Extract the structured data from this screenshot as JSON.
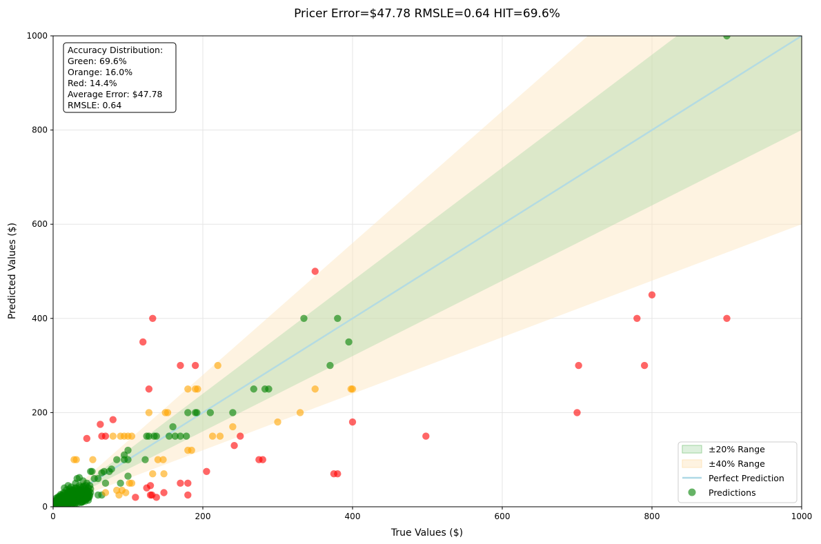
{
  "chart_data": {
    "type": "scatter",
    "title": "Pricer Error=$47.78  RMSLE=0.64  HIT=69.6%",
    "xlabel": "True Values ($)",
    "ylabel": "Predicted Values ($)",
    "xlim": [
      0,
      1000
    ],
    "ylim": [
      0,
      1000
    ],
    "xticks": [
      "0",
      "200",
      "400",
      "600",
      "800",
      "1000"
    ],
    "yticks": [
      "0",
      "200",
      "400",
      "600",
      "800",
      "1000"
    ],
    "grid": true,
    "legend_position": "bottom-right",
    "colors": {
      "green": "#008000",
      "orange": "#ffa500",
      "red": "#ff0000",
      "band20": "#9fd39f",
      "band40": "#fde5bd",
      "perfect_line": "#add8e6"
    },
    "info_box": {
      "lines": [
        "Accuracy Distribution:",
        "Green: 69.6%",
        "Orange: 16.0%",
        "Red: 14.4%",
        "Average Error: $47.78",
        "RMSLE: 0.64"
      ]
    },
    "legend": [
      {
        "label": "±20% Range",
        "kind": "patch",
        "color": "band20"
      },
      {
        "label": "±40% Range",
        "kind": "patch",
        "color": "band40"
      },
      {
        "label": "Perfect Prediction",
        "kind": "line",
        "color": "perfect_line"
      },
      {
        "label": "Predictions",
        "kind": "marker",
        "color": "green"
      }
    ],
    "series": [
      {
        "color": "green",
        "points": [
          [
            2,
            2
          ],
          [
            3,
            5
          ],
          [
            4,
            3
          ],
          [
            5,
            8
          ],
          [
            5,
            12
          ],
          [
            6,
            4
          ],
          [
            7,
            10
          ],
          [
            8,
            6
          ],
          [
            8,
            15
          ],
          [
            9,
            9
          ],
          [
            10,
            12
          ],
          [
            10,
            18
          ],
          [
            11,
            7
          ],
          [
            12,
            14
          ],
          [
            12,
            20
          ],
          [
            13,
            10
          ],
          [
            14,
            16
          ],
          [
            15,
            13
          ],
          [
            15,
            22
          ],
          [
            16,
            8
          ],
          [
            17,
            19
          ],
          [
            18,
            14
          ],
          [
            18,
            25
          ],
          [
            19,
            11
          ],
          [
            20,
            17
          ],
          [
            20,
            28
          ],
          [
            21,
            22
          ],
          [
            22,
            15
          ],
          [
            23,
            24
          ],
          [
            24,
            18
          ],
          [
            25,
            30
          ],
          [
            25,
            12
          ],
          [
            26,
            20
          ],
          [
            27,
            27
          ],
          [
            28,
            16
          ],
          [
            28,
            35
          ],
          [
            29,
            23
          ],
          [
            30,
            19
          ],
          [
            30,
            32
          ],
          [
            31,
            27
          ],
          [
            32,
            22
          ],
          [
            33,
            38
          ],
          [
            34,
            28
          ],
          [
            35,
            25
          ],
          [
            35,
            45
          ],
          [
            36,
            31
          ],
          [
            37,
            20
          ],
          [
            38,
            35
          ],
          [
            39,
            28
          ],
          [
            40,
            42
          ],
          [
            40,
            25
          ],
          [
            41,
            33
          ],
          [
            42,
            38
          ],
          [
            43,
            30
          ],
          [
            44,
            45
          ],
          [
            45,
            35
          ],
          [
            46,
            28
          ],
          [
            47,
            40
          ],
          [
            48,
            32
          ],
          [
            49,
            45
          ],
          [
            50,
            38
          ],
          [
            15,
            40
          ],
          [
            20,
            45
          ],
          [
            25,
            35
          ],
          [
            30,
            50
          ],
          [
            32,
            60
          ],
          [
            35,
            62
          ],
          [
            40,
            55
          ],
          [
            45,
            50
          ],
          [
            52,
            75
          ],
          [
            50,
            75
          ],
          [
            55,
            60
          ],
          [
            60,
            60
          ],
          [
            60,
            25
          ],
          [
            65,
            25
          ],
          [
            65,
            72
          ],
          [
            68,
            75
          ],
          [
            70,
            50
          ],
          [
            75,
            75
          ],
          [
            78,
            80
          ],
          [
            85,
            100
          ],
          [
            90,
            50
          ],
          [
            95,
            110
          ],
          [
            95,
            100
          ],
          [
            100,
            100
          ],
          [
            100,
            120
          ],
          [
            100,
            65
          ],
          [
            123,
            100
          ],
          [
            125,
            150
          ],
          [
            128,
            150
          ],
          [
            135,
            150
          ],
          [
            138,
            150
          ],
          [
            155,
            150
          ],
          [
            160,
            170
          ],
          [
            163,
            150
          ],
          [
            170,
            150
          ],
          [
            178,
            150
          ],
          [
            180,
            200
          ],
          [
            190,
            200
          ],
          [
            192,
            200
          ],
          [
            210,
            200
          ],
          [
            240,
            200
          ],
          [
            268,
            250
          ],
          [
            283,
            250
          ],
          [
            288,
            250
          ],
          [
            335,
            400
          ],
          [
            370,
            300
          ],
          [
            380,
            400
          ],
          [
            395,
            350
          ],
          [
            900,
            1000
          ],
          [
            10,
            15
          ],
          [
            12,
            8
          ],
          [
            14,
            22
          ],
          [
            16,
            12
          ],
          [
            18,
            20
          ],
          [
            22,
            10
          ],
          [
            24,
            26
          ],
          [
            26,
            14
          ],
          [
            28,
            30
          ],
          [
            30,
            24
          ],
          [
            32,
            18
          ],
          [
            34,
            36
          ],
          [
            36,
            22
          ],
          [
            38,
            28
          ],
          [
            42,
            24
          ],
          [
            44,
            30
          ],
          [
            46,
            34
          ],
          [
            48,
            26
          ],
          [
            50,
            30
          ],
          [
            3,
            9
          ],
          [
            4,
            14
          ],
          [
            6,
            17
          ],
          [
            7,
            2
          ],
          [
            9,
            20
          ],
          [
            11,
            4
          ],
          [
            13,
            25
          ],
          [
            17,
            3
          ],
          [
            19,
            30
          ],
          [
            21,
            6
          ],
          [
            23,
            33
          ],
          [
            27,
            8
          ],
          [
            29,
            40
          ],
          [
            31,
            12
          ],
          [
            33,
            15
          ],
          [
            37,
            9
          ],
          [
            39,
            18
          ],
          [
            41,
            16
          ],
          [
            43,
            22
          ],
          [
            47,
            20
          ],
          [
            49,
            24
          ],
          [
            5,
            2
          ],
          [
            8,
            22
          ],
          [
            10,
            26
          ],
          [
            14,
            30
          ],
          [
            18,
            36
          ],
          [
            20,
            5
          ],
          [
            22,
            38
          ],
          [
            24,
            42
          ],
          [
            26,
            6
          ],
          [
            28,
            10
          ],
          [
            30,
            8
          ],
          [
            32,
            12
          ],
          [
            34,
            14
          ],
          [
            36,
            16
          ],
          [
            38,
            10
          ],
          [
            40,
            12
          ],
          [
            42,
            14
          ],
          [
            44,
            16
          ],
          [
            46,
            18
          ],
          [
            48,
            20
          ],
          [
            2,
            8
          ],
          [
            3,
            12
          ],
          [
            4,
            18
          ],
          [
            6,
            20
          ],
          [
            7,
            16
          ],
          [
            9,
            4
          ],
          [
            11,
            24
          ],
          [
            13,
            6
          ],
          [
            15,
            28
          ],
          [
            17,
            24
          ],
          [
            19,
            2
          ],
          [
            21,
            32
          ],
          [
            23,
            4
          ],
          [
            25,
            18
          ],
          [
            27,
            36
          ],
          [
            29,
            6
          ],
          [
            31,
            40
          ],
          [
            33,
            8
          ],
          [
            35,
            32
          ],
          [
            37,
            42
          ],
          [
            39,
            10
          ],
          [
            41,
            44
          ],
          [
            43,
            12
          ],
          [
            45,
            20
          ],
          [
            47,
            14
          ]
        ]
      },
      {
        "color": "orange",
        "points": [
          [
            28,
            100
          ],
          [
            31,
            100
          ],
          [
            53,
            100
          ],
          [
            70,
            30
          ],
          [
            80,
            150
          ],
          [
            85,
            35
          ],
          [
            88,
            25
          ],
          [
            90,
            150
          ],
          [
            92,
            35
          ],
          [
            95,
            150
          ],
          [
            97,
            30
          ],
          [
            100,
            150
          ],
          [
            102,
            50
          ],
          [
            105,
            150
          ],
          [
            105,
            50
          ],
          [
            128,
            200
          ],
          [
            133,
            70
          ],
          [
            140,
            100
          ],
          [
            147,
            100
          ],
          [
            148,
            70
          ],
          [
            150,
            200
          ],
          [
            153,
            200
          ],
          [
            180,
            250
          ],
          [
            180,
            120
          ],
          [
            185,
            120
          ],
          [
            190,
            250
          ],
          [
            193,
            250
          ],
          [
            213,
            150
          ],
          [
            220,
            300
          ],
          [
            223,
            150
          ],
          [
            240,
            170
          ],
          [
            350,
            250
          ],
          [
            300,
            180
          ],
          [
            330,
            200
          ],
          [
            398,
            250
          ],
          [
            400,
            250
          ]
        ]
      },
      {
        "color": "red",
        "points": [
          [
            45,
            145
          ],
          [
            63,
            175
          ],
          [
            65,
            150
          ],
          [
            70,
            150
          ],
          [
            80,
            185
          ],
          [
            110,
            20
          ],
          [
            120,
            350
          ],
          [
            125,
            40
          ],
          [
            128,
            250
          ],
          [
            130,
            25
          ],
          [
            130,
            45
          ],
          [
            132,
            25
          ],
          [
            133,
            400
          ],
          [
            138,
            20
          ],
          [
            148,
            30
          ],
          [
            170,
            50
          ],
          [
            170,
            300
          ],
          [
            180,
            50
          ],
          [
            180,
            25
          ],
          [
            190,
            300
          ],
          [
            205,
            75
          ],
          [
            242,
            130
          ],
          [
            250,
            150
          ],
          [
            275,
            100
          ],
          [
            280,
            100
          ],
          [
            350,
            500
          ],
          [
            375,
            70
          ],
          [
            380,
            70
          ],
          [
            400,
            180
          ],
          [
            498,
            150
          ],
          [
            700,
            200
          ],
          [
            702,
            300
          ],
          [
            780,
            400
          ],
          [
            790,
            300
          ],
          [
            800,
            450
          ],
          [
            900,
            400
          ]
        ]
      }
    ]
  }
}
